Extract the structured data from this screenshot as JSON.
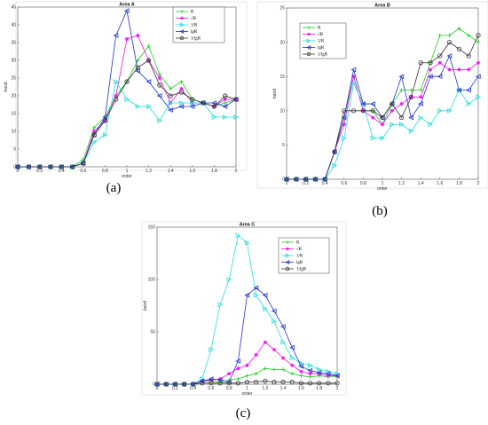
{
  "chart_data": [
    {
      "type": "line",
      "title": "Area A",
      "caption": "(a)",
      "xlabel": "order",
      "ylabel": "band",
      "xlim": [
        0,
        2
      ],
      "ylim": [
        0,
        45
      ],
      "xticks": [
        "0",
        "0.2",
        "0.4",
        "0.6",
        "0.8",
        "1",
        "1.2",
        "1.4",
        "1.6",
        "1.8",
        "2"
      ],
      "yticks": [
        "0",
        "5",
        "10",
        "15",
        "20",
        "25",
        "30",
        "35",
        "40",
        "45"
      ],
      "grid": false,
      "legend_position": "top-right",
      "x": [
        0,
        0.1,
        0.2,
        0.3,
        0.4,
        0.5,
        0.6,
        0.7,
        0.8,
        0.9,
        1.0,
        1.1,
        1.2,
        1.3,
        1.4,
        1.5,
        1.6,
        1.7,
        1.8,
        1.9,
        2.0
      ],
      "series": [
        {
          "name": "R",
          "values": [
            0,
            0,
            0,
            0,
            0,
            0,
            2,
            11,
            14,
            20,
            24,
            30,
            34,
            26,
            22,
            24,
            19,
            18,
            17,
            18,
            19
          ]
        },
        {
          "name": "√R",
          "values": [
            0,
            0,
            0,
            0,
            0,
            0,
            1,
            10,
            13,
            20,
            36,
            37,
            30,
            25,
            18,
            22,
            18,
            18,
            17,
            19,
            19
          ]
        },
        {
          "name": "1/R",
          "values": [
            0,
            0,
            0,
            0,
            0,
            0,
            1,
            7,
            9,
            24,
            19,
            17,
            17,
            13,
            18,
            18,
            18,
            18,
            14,
            14,
            14
          ]
        },
        {
          "name": "lgR",
          "values": [
            0,
            0,
            0,
            0,
            0,
            0,
            1,
            9,
            14,
            37,
            44,
            27,
            24,
            20,
            16,
            17,
            17,
            18,
            18,
            17,
            19
          ]
        },
        {
          "name": "1/lgR",
          "values": [
            0,
            0,
            0,
            0,
            0,
            0,
            1,
            9,
            13,
            19,
            24,
            28,
            30,
            23,
            20,
            21,
            19,
            18,
            17,
            20,
            19
          ]
        }
      ]
    },
    {
      "type": "line",
      "title": "Area B",
      "caption": "(b)",
      "xlabel": "order",
      "ylabel": "band",
      "xlim": [
        0,
        2
      ],
      "ylim": [
        0,
        25
      ],
      "xticks": [
        "0",
        "0.2",
        "0.4",
        "0.6",
        "0.8",
        "1",
        "1.2",
        "1.4",
        "1.6",
        "1.8",
        "2"
      ],
      "yticks": [
        "0",
        "5",
        "10",
        "15",
        "20",
        "25"
      ],
      "grid": false,
      "legend_position": "top-left",
      "x": [
        0,
        0.1,
        0.2,
        0.3,
        0.4,
        0.5,
        0.6,
        0.7,
        0.8,
        0.9,
        1.0,
        1.1,
        1.2,
        1.3,
        1.4,
        1.5,
        1.6,
        1.7,
        1.8,
        1.9,
        2.0
      ],
      "series": [
        {
          "name": "R",
          "values": [
            0,
            0,
            0,
            0,
            0,
            4,
            9,
            15,
            10,
            10,
            8,
            11,
            13,
            13,
            13,
            17,
            21,
            21,
            22,
            21,
            20
          ]
        },
        {
          "name": "√R",
          "values": [
            0,
            0,
            0,
            0,
            0,
            4,
            8,
            15,
            10,
            9,
            8,
            10,
            11,
            12,
            12,
            16,
            17,
            16,
            16,
            16,
            17
          ]
        },
        {
          "name": "1/R",
          "values": [
            0,
            0,
            0,
            0,
            0,
            2,
            6,
            14,
            11,
            6,
            6,
            8,
            8,
            7,
            9,
            8,
            10,
            10,
            13,
            11,
            12
          ]
        },
        {
          "name": "lgR",
          "values": [
            0,
            0,
            0,
            0,
            0,
            4,
            9,
            16,
            11,
            11,
            9,
            11,
            15,
            9,
            11,
            15,
            15,
            18,
            13,
            13,
            15
          ]
        },
        {
          "name": "1/lgR",
          "values": [
            0,
            0,
            0,
            0,
            0,
            4,
            10,
            10,
            10,
            10,
            9,
            11,
            9,
            12,
            17,
            17,
            18,
            20,
            19,
            18,
            21
          ]
        }
      ]
    },
    {
      "type": "line",
      "title": "Area C",
      "caption": "(c)",
      "xlabel": "order",
      "ylabel": "band",
      "xlim": [
        0,
        2
      ],
      "ylim": [
        0,
        150
      ],
      "xticks": [
        "0",
        "0.2",
        "0.4",
        "0.6",
        "0.8",
        "1",
        "1.2",
        "1.4",
        "1.6",
        "1.8",
        "2"
      ],
      "yticks": [
        "0",
        "50",
        "100",
        "150"
      ],
      "grid": false,
      "legend_position": "top-right",
      "x": [
        0,
        0.1,
        0.2,
        0.3,
        0.4,
        0.5,
        0.6,
        0.7,
        0.8,
        0.9,
        1.0,
        1.1,
        1.2,
        1.3,
        1.4,
        1.5,
        1.6,
        1.7,
        1.8,
        1.9,
        2.0
      ],
      "series": [
        {
          "name": "R",
          "values": [
            0,
            0,
            0,
            0,
            0,
            3,
            3,
            2,
            4,
            5,
            8,
            10,
            15,
            14,
            14,
            10,
            8,
            7,
            8,
            7,
            7
          ]
        },
        {
          "name": "√R",
          "values": [
            0,
            0,
            0,
            0,
            0,
            3,
            4,
            5,
            10,
            15,
            18,
            28,
            40,
            33,
            25,
            18,
            12,
            10,
            10,
            8,
            8
          ]
        },
        {
          "name": "1/R",
          "values": [
            0,
            0,
            0,
            0,
            0,
            5,
            33,
            76,
            100,
            142,
            135,
            85,
            72,
            60,
            40,
            25,
            20,
            18,
            14,
            12,
            10
          ]
        },
        {
          "name": "lgR",
          "values": [
            0,
            0,
            0,
            0,
            0,
            3,
            5,
            4,
            2,
            22,
            85,
            92,
            85,
            70,
            55,
            35,
            17,
            13,
            11,
            10,
            8
          ]
        },
        {
          "name": "1/lgR",
          "values": [
            0,
            0,
            0,
            0,
            0,
            1,
            1,
            1,
            1,
            1,
            2,
            2,
            3,
            2,
            2,
            2,
            1,
            1,
            1,
            1,
            1
          ]
        }
      ]
    }
  ],
  "colors": {
    "R": "#22cc22",
    "√R": "#ee11ee",
    "1/R": "#22dddd",
    "lgR": "#2233cc",
    "1/lgR": "#333333"
  },
  "markers": {
    "R": "plus",
    "√R": "star",
    "1/R": "triangle-right",
    "lgR": "triangle-left",
    "1/lgR": "circle"
  }
}
